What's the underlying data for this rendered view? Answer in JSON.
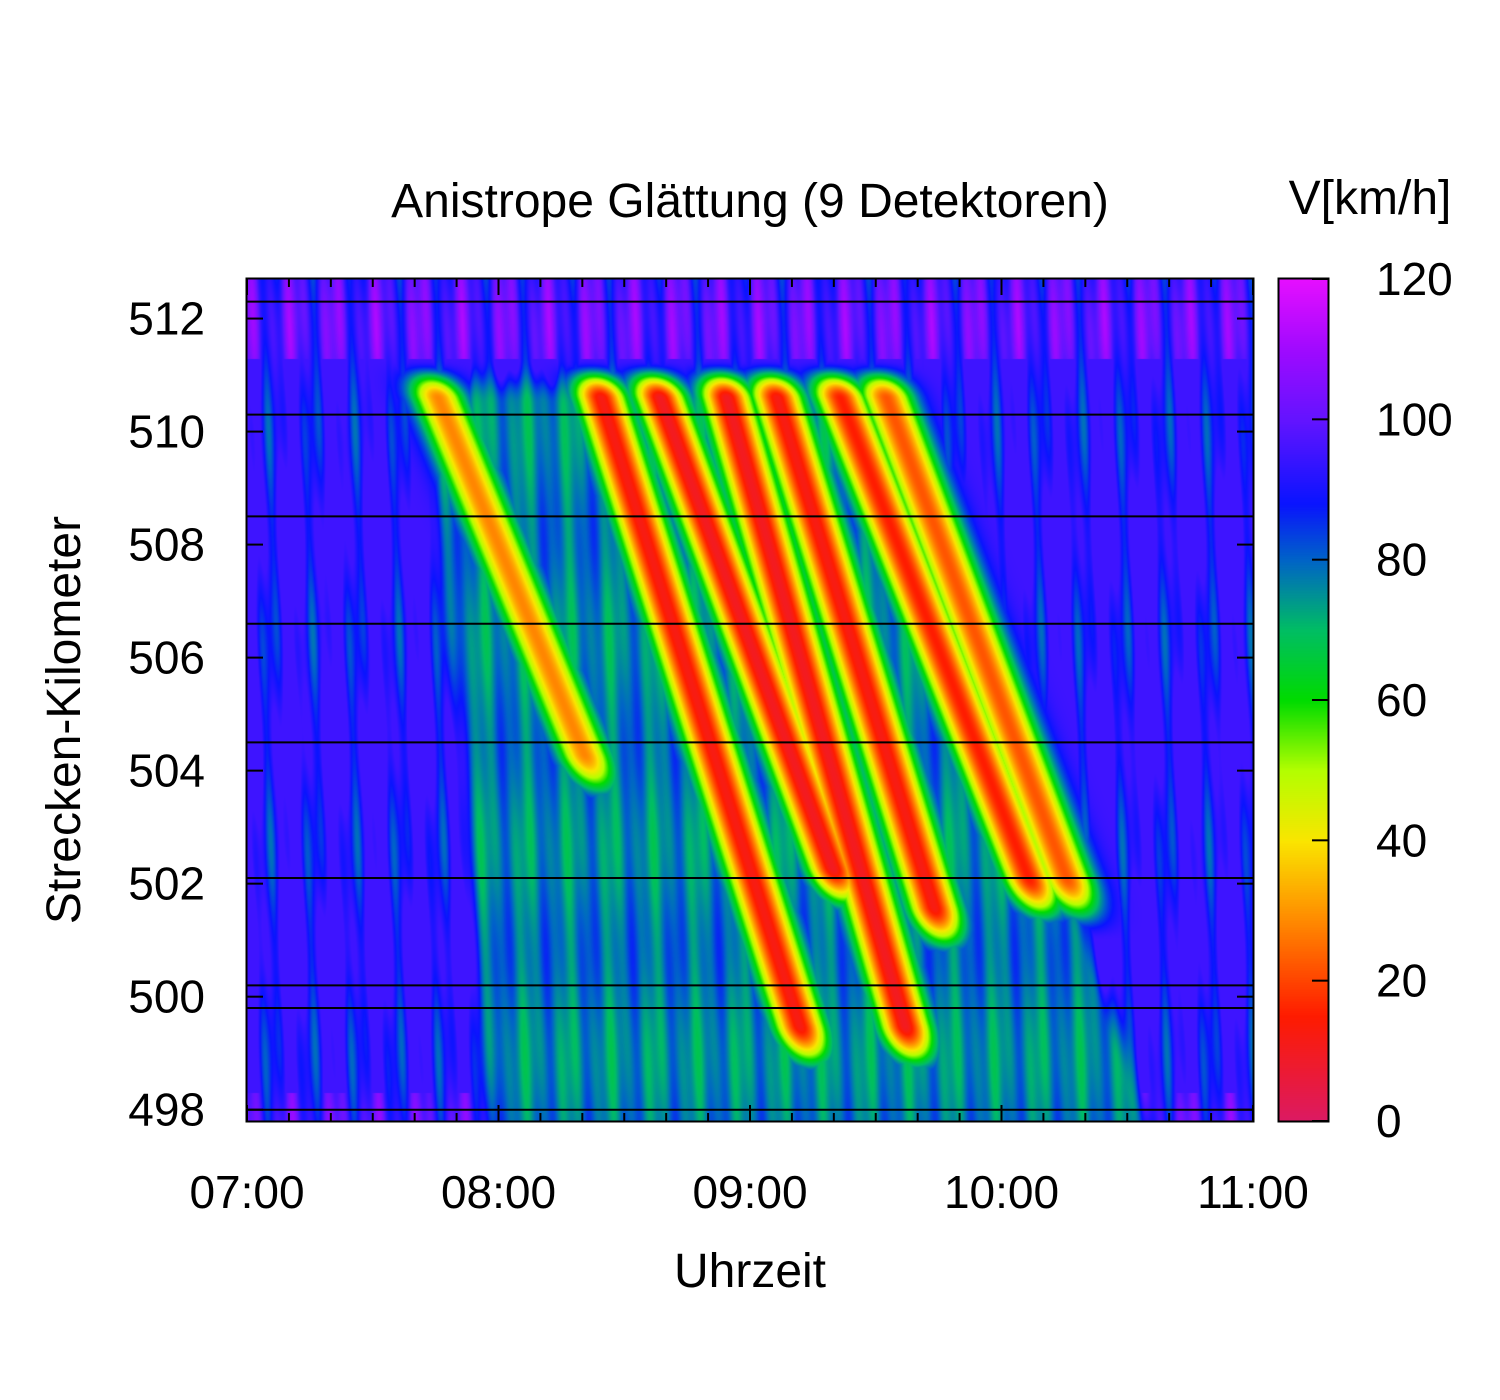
{
  "chart_data": {
    "type": "heatmap",
    "title": "Anistrope Glättung (9 Detektoren)",
    "xlabel": "Uhrzeit",
    "ylabel": "Strecken-Kilometer",
    "colorbar_label": "V[km/h]",
    "x_ticks": [
      "07:00",
      "08:00",
      "09:00",
      "10:00",
      "11:00"
    ],
    "x_range_hours": [
      7,
      11
    ],
    "y_ticks": [
      498,
      500,
      502,
      504,
      506,
      508,
      510,
      512
    ],
    "y_range_km": [
      497.8,
      512.7
    ],
    "colorbar_ticks": [
      0,
      20,
      40,
      60,
      80,
      100,
      120
    ],
    "colorbar_range": [
      0,
      120
    ],
    "detector_positions_km": [
      498.0,
      499.8,
      500.2,
      502.1,
      504.5,
      506.6,
      508.5,
      510.3,
      512.3
    ],
    "free_flow_speed_kmh": 95,
    "congested_region": {
      "top_edge_km": 510.8,
      "start_time": "07:43",
      "end_time": "09:36",
      "bottom_edge_start": [
        "08:24",
        503.5
      ],
      "bottom_edge_end": [
        "10:18",
        501.5
      ]
    },
    "jam_waves": [
      {
        "start": [
          "07:45",
          510.7
        ],
        "end": [
          "08:22",
          504.0
        ],
        "min_speed": 28
      },
      {
        "start": [
          "08:24",
          510.7
        ],
        "end": [
          "09:13",
          499.2
        ],
        "min_speed": 12
      },
      {
        "start": [
          "08:38",
          510.7
        ],
        "end": [
          "09:21",
          502.0
        ],
        "min_speed": 10
      },
      {
        "start": [
          "08:54",
          510.7
        ],
        "end": [
          "09:38",
          499.2
        ],
        "min_speed": 10
      },
      {
        "start": [
          "09:06",
          510.7
        ],
        "end": [
          "09:45",
          501.3
        ],
        "min_speed": 12
      },
      {
        "start": [
          "09:21",
          510.7
        ],
        "end": [
          "10:08",
          501.8
        ],
        "min_speed": 15
      },
      {
        "start": [
          "09:32",
          510.7
        ],
        "end": [
          "10:17",
          501.8
        ],
        "min_speed": 22
      }
    ],
    "colorscale": [
      [
        0,
        "#dc1a64"
      ],
      [
        15,
        "#ff1c00"
      ],
      [
        30,
        "#ff9600"
      ],
      [
        40,
        "#fae600"
      ],
      [
        50,
        "#b4ff00"
      ],
      [
        60,
        "#00dc00"
      ],
      [
        70,
        "#00be64"
      ],
      [
        80,
        "#0064c8"
      ],
      [
        88,
        "#0a14ff"
      ],
      [
        100,
        "#6414ff"
      ],
      [
        110,
        "#a00aff"
      ],
      [
        120,
        "#e60fff"
      ]
    ]
  }
}
